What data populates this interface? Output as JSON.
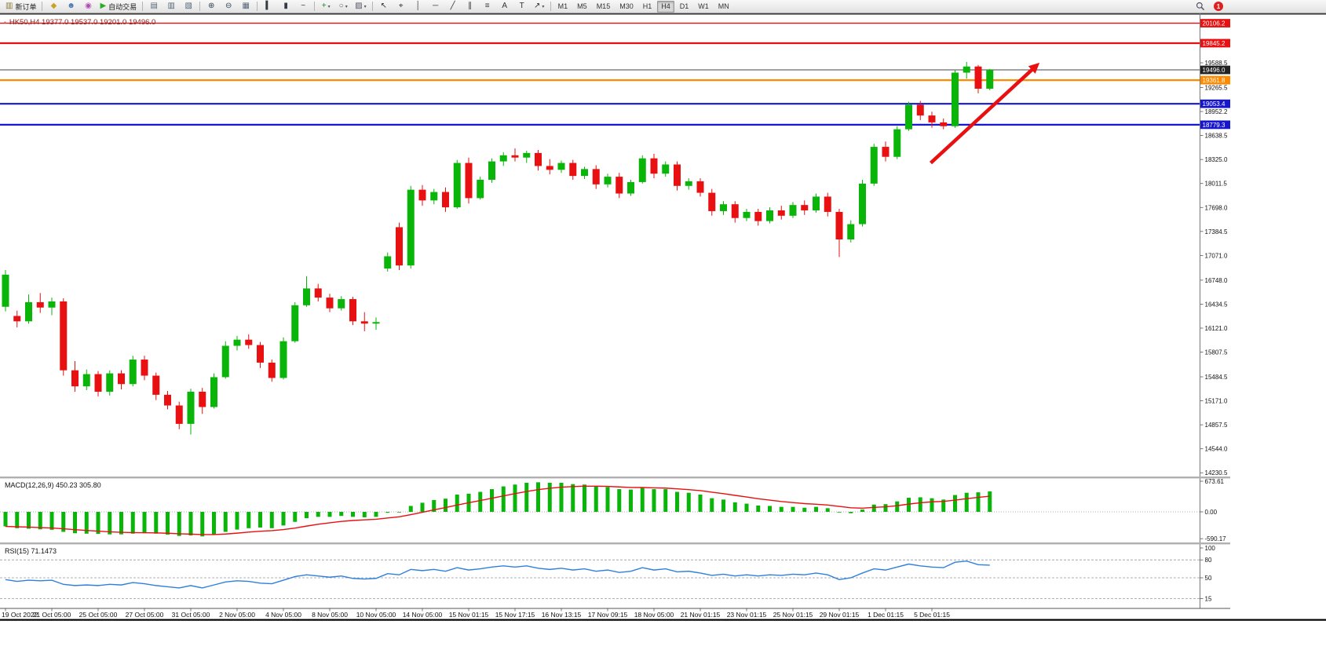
{
  "toolbar": {
    "notifications": {
      "count": "1"
    },
    "timeframes": {
      "items": [
        "M1",
        "M5",
        "M15",
        "M30",
        "H1",
        "H4",
        "D1",
        "W1",
        "MN"
      ],
      "active": "H4"
    },
    "icon_groups": [
      {
        "items": [
          {
            "name": "new-order-button",
            "glyph": "▥",
            "color": "#8a7a3a",
            "label": "新订单"
          }
        ]
      },
      {
        "items": [
          {
            "name": "profiles-icon",
            "glyph": "◆",
            "color": "#c9a227"
          },
          {
            "name": "community-icon",
            "glyph": "☻",
            "color": "#4a77b4"
          },
          {
            "name": "marketplace-icon",
            "glyph": "◉",
            "color": "#b04ab4"
          },
          {
            "name": "autotrading-button",
            "glyph": "▶",
            "color": "#2eaa2e",
            "label": "自动交易"
          }
        ]
      },
      {
        "items": [
          {
            "name": "tile-windows-icon",
            "glyph": "▤",
            "color": "#556677"
          },
          {
            "name": "tile-vertical-icon",
            "glyph": "▥",
            "color": "#556677"
          },
          {
            "name": "cascade-windows-icon",
            "glyph": "▧",
            "color": "#556677"
          }
        ]
      },
      {
        "items": [
          {
            "name": "zoom-in-icon",
            "glyph": "⊕",
            "color": "#334455"
          },
          {
            "name": "zoom-out-icon",
            "glyph": "⊖",
            "color": "#334455"
          },
          {
            "name": "grid-icon",
            "glyph": "▦",
            "color": "#556677"
          }
        ]
      },
      {
        "items": [
          {
            "name": "bar-chart-icon",
            "glyph": "▍",
            "color": "#333a44"
          },
          {
            "name": "candlestick-chart-icon",
            "glyph": "▮",
            "color": "#333a44"
          },
          {
            "name": "line-chart-icon",
            "glyph": "~",
            "color": "#333a44"
          }
        ]
      },
      {
        "items": [
          {
            "name": "indicators-icon",
            "glyph": "+",
            "color": "#1a8a1a",
            "caret": true
          },
          {
            "name": "periods-icon",
            "glyph": "○",
            "color": "#555566",
            "caret": true
          },
          {
            "name": "templates-icon",
            "glyph": "▨",
            "color": "#555566",
            "caret": true
          }
        ]
      },
      {
        "items": [
          {
            "name": "cursor-icon",
            "glyph": "↖",
            "color": "#333333"
          },
          {
            "name": "crosshair-icon",
            "glyph": "⌖",
            "color": "#333333"
          },
          {
            "name": "vertical-line-icon",
            "glyph": "│",
            "color": "#333333"
          },
          {
            "name": "horizontal-line-icon",
            "glyph": "─",
            "color": "#333333"
          },
          {
            "name": "trendline-icon",
            "glyph": "╱",
            "color": "#333333"
          },
          {
            "name": "channel-icon",
            "glyph": "∥",
            "color": "#333333"
          },
          {
            "name": "fibonacci-icon",
            "glyph": "≡",
            "color": "#333333"
          },
          {
            "name": "text-icon",
            "glyph": "A",
            "color": "#333333"
          },
          {
            "name": "text-label-icon",
            "glyph": "T",
            "color": "#333333"
          },
          {
            "name": "arrows-icon",
            "glyph": "↗",
            "color": "#333333",
            "caret": true
          }
        ]
      }
    ]
  },
  "chart_data": [
    {
      "type": "candlestick",
      "symbol": "HK50",
      "period": "H4",
      "header": "HK50,H4 19377.0 19537.0 19201.0 19496.0",
      "ohlc_header": {
        "open": "19377.0",
        "high": "19537.0",
        "low": "19201.0",
        "close": "19496.0"
      },
      "colors": {
        "up": "#09b509",
        "down": "#e81010"
      },
      "current_price": 19496.0,
      "y_axis_labels": [
        "19588.5",
        "19265.5",
        "18952.2",
        "18638.5",
        "18325.0",
        "18011.5",
        "17698.0",
        "17384.5",
        "17071.0",
        "16748.0",
        "16434.5",
        "16121.0",
        "15807.5",
        "15484.5",
        "15171.0",
        "14857.5",
        "14544.0",
        "14230.5"
      ],
      "hlines": [
        {
          "price": 20106.2,
          "label": "20106.2",
          "color": "#e81010",
          "width": 1.4,
          "badge_bg": "#e81010"
        },
        {
          "price": 19845.2,
          "label": "19845.2",
          "color": "#e81010",
          "width": 2.2,
          "badge_bg": "#e81010"
        },
        {
          "price": 19496.0,
          "label": "19496.0",
          "color": "#444444",
          "width": 1.0,
          "badge_bg": "#222222"
        },
        {
          "price": 19361.8,
          "label": "19361.8",
          "color": "#ff8a00",
          "width": 2.2,
          "badge_bg": "#ff8a00"
        },
        {
          "price": 19053.4,
          "label": "19053.4",
          "color": "#1616cf",
          "width": 2.2,
          "badge_bg": "#1616cf"
        },
        {
          "price": 18779.3,
          "label": "18779.3",
          "color": "#1616cf",
          "width": 2.2,
          "badge_bg": "#1616cf"
        }
      ],
      "arrow": {
        "from_index": 79.9,
        "from_price": 18280,
        "to_index": 89.3,
        "to_price": 19590,
        "color": "#e81010"
      },
      "x_label_every": 4,
      "x_labels": [
        "19 Oct 2022",
        "21 Oct 05:00",
        "25 Oct 05:00",
        "27 Oct 05:00",
        "31 Oct 05:00",
        "2 Nov 05:00",
        "4 Nov 05:00",
        "8 Nov 05:00",
        "10 Nov 05:00",
        "14 Nov 05:00",
        "15 Nov 01:15",
        "15 Nov 17:15",
        "16 Nov 13:15",
        "17 Nov 09:15",
        "18 Nov 05:00",
        "21 Nov 01:15",
        "23 Nov 01:15",
        "25 Nov 01:15",
        "29 Nov 01:15",
        "1 Dec 01:15",
        "5 Dec 01:15"
      ],
      "candles": [
        [
          16400,
          16880,
          16340,
          16820
        ],
        [
          16280,
          16350,
          16130,
          16210
        ],
        [
          16210,
          16560,
          16180,
          16460
        ],
        [
          16460,
          16580,
          16320,
          16390
        ],
        [
          16390,
          16520,
          16290,
          16470
        ],
        [
          16470,
          16510,
          15500,
          15570
        ],
        [
          15570,
          15690,
          15290,
          15360
        ],
        [
          15360,
          15580,
          15310,
          15520
        ],
        [
          15520,
          15560,
          15230,
          15290
        ],
        [
          15290,
          15570,
          15240,
          15530
        ],
        [
          15530,
          15570,
          15320,
          15390
        ],
        [
          15390,
          15760,
          15360,
          15710
        ],
        [
          15710,
          15760,
          15440,
          15500
        ],
        [
          15500,
          15540,
          15180,
          15250
        ],
        [
          15250,
          15300,
          15060,
          15110
        ],
        [
          15110,
          15160,
          14800,
          14870
        ],
        [
          14870,
          15330,
          14730,
          15290
        ],
        [
          15290,
          15340,
          15000,
          15090
        ],
        [
          15090,
          15530,
          15070,
          15480
        ],
        [
          15480,
          15950,
          15460,
          15890
        ],
        [
          15890,
          16020,
          15830,
          15970
        ],
        [
          15970,
          16040,
          15850,
          15900
        ],
        [
          15900,
          15940,
          15600,
          15670
        ],
        [
          15670,
          15710,
          15420,
          15470
        ],
        [
          15470,
          16000,
          15450,
          15950
        ],
        [
          15950,
          16460,
          15930,
          16420
        ],
        [
          16420,
          16800,
          16400,
          16640
        ],
        [
          16640,
          16700,
          16470,
          16520
        ],
        [
          16520,
          16570,
          16330,
          16380
        ],
        [
          16380,
          16540,
          16350,
          16500
        ],
        [
          16500,
          16530,
          16160,
          16210
        ],
        [
          16210,
          16330,
          16080,
          16180
        ],
        [
          16180,
          16260,
          16100,
          16200
        ],
        [
          16900,
          17110,
          16860,
          17060
        ],
        [
          17440,
          17500,
          16880,
          16940
        ],
        [
          16940,
          17980,
          16900,
          17930
        ],
        [
          17930,
          17990,
          17720,
          17790
        ],
        [
          17790,
          17940,
          17740,
          17900
        ],
        [
          17900,
          17960,
          17640,
          17700
        ],
        [
          17700,
          18320,
          17680,
          18280
        ],
        [
          18280,
          18350,
          17750,
          17820
        ],
        [
          17820,
          18100,
          17800,
          18060
        ],
        [
          18060,
          18340,
          18020,
          18300
        ],
        [
          18300,
          18420,
          18240,
          18380
        ],
        [
          18380,
          18470,
          18300,
          18350
        ],
        [
          18350,
          18440,
          18280,
          18410
        ],
        [
          18410,
          18450,
          18180,
          18240
        ],
        [
          18240,
          18330,
          18130,
          18190
        ],
        [
          18190,
          18310,
          18150,
          18280
        ],
        [
          18280,
          18320,
          18060,
          18110
        ],
        [
          18110,
          18230,
          18070,
          18200
        ],
        [
          18200,
          18250,
          17940,
          18000
        ],
        [
          18000,
          18140,
          17960,
          18100
        ],
        [
          18100,
          18150,
          17820,
          17880
        ],
        [
          17880,
          18060,
          17850,
          18030
        ],
        [
          18030,
          18380,
          18010,
          18340
        ],
        [
          18340,
          18400,
          18080,
          18140
        ],
        [
          18140,
          18300,
          18100,
          18260
        ],
        [
          18260,
          18300,
          17920,
          17980
        ],
        [
          17980,
          18080,
          17930,
          18040
        ],
        [
          18040,
          18080,
          17840,
          17890
        ],
        [
          17890,
          17940,
          17590,
          17650
        ],
        [
          17650,
          17780,
          17600,
          17740
        ],
        [
          17740,
          17780,
          17500,
          17560
        ],
        [
          17560,
          17680,
          17520,
          17640
        ],
        [
          17640,
          17680,
          17460,
          17520
        ],
        [
          17520,
          17700,
          17490,
          17660
        ],
        [
          17660,
          17720,
          17540,
          17590
        ],
        [
          17590,
          17770,
          17560,
          17730
        ],
        [
          17730,
          17790,
          17600,
          17660
        ],
        [
          17660,
          17880,
          17630,
          17840
        ],
        [
          17840,
          17890,
          17580,
          17640
        ],
        [
          17640,
          17680,
          17050,
          17280
        ],
        [
          17280,
          17530,
          17240,
          17480
        ],
        [
          17480,
          18060,
          17450,
          18010
        ],
        [
          18010,
          18530,
          17980,
          18490
        ],
        [
          18490,
          18560,
          18300,
          18360
        ],
        [
          18360,
          18760,
          18330,
          18720
        ],
        [
          18720,
          19080,
          18700,
          19040
        ],
        [
          19040,
          19090,
          18840,
          18900
        ],
        [
          18900,
          18950,
          18740,
          18810
        ],
        [
          18810,
          18860,
          18720,
          18760
        ],
        [
          18760,
          19500,
          18740,
          19460
        ],
        [
          19460,
          19600,
          19380,
          19540
        ],
        [
          19540,
          19560,
          19190,
          19250
        ],
        [
          19250,
          19510,
          19230,
          19496
        ]
      ]
    },
    {
      "type": "bar",
      "label": "MACD(12,26,9)",
      "values_text": [
        "450.23",
        "305.80"
      ],
      "label_full": "MACD(12,26,9) 450.23 305.80",
      "colors": {
        "histogram": "#09b509",
        "signal": "#e81010"
      },
      "y_axis_labels": [
        "673.61",
        "0.00",
        "-590.17"
      ],
      "ylim": [
        -590.17,
        673.61
      ],
      "histogram": [
        -320,
        -360,
        -370,
        -385,
        -395,
        -440,
        -470,
        -480,
        -485,
        -495,
        -495,
        -480,
        -470,
        -480,
        -500,
        -530,
        -520,
        -540,
        -500,
        -440,
        -390,
        -360,
        -345,
        -360,
        -300,
        -220,
        -140,
        -110,
        -110,
        -90,
        -110,
        -120,
        -110,
        -20,
        -10,
        130,
        200,
        260,
        290,
        380,
        400,
        440,
        500,
        560,
        600,
        640,
        650,
        640,
        640,
        610,
        600,
        560,
        545,
        500,
        490,
        530,
        500,
        500,
        440,
        420,
        380,
        300,
        270,
        210,
        180,
        140,
        130,
        110,
        110,
        90,
        110,
        80,
        0,
        -30,
        50,
        160,
        170,
        230,
        310,
        320,
        300,
        270,
        370,
        420,
        430,
        450.23
      ]
    },
    {
      "type": "line",
      "label": "RSI(15)",
      "value_text": "71.1473",
      "label_full": "RSI(15) 71.1473",
      "colors": {
        "line": "#2f7fdf",
        "levels": "#999999"
      },
      "levels": [
        80,
        50,
        15
      ],
      "y_axis_labels": [
        "100",
        "80",
        "50",
        "15"
      ],
      "ylim": [
        0,
        100
      ],
      "values": [
        47,
        44,
        46,
        45,
        46,
        39,
        37,
        38,
        37,
        39,
        38,
        42,
        40,
        37,
        35,
        33,
        37,
        33,
        38,
        43,
        45,
        44,
        41,
        40,
        46,
        52,
        55,
        53,
        51,
        53,
        49,
        48,
        49,
        57,
        55,
        64,
        62,
        64,
        61,
        67,
        63,
        65,
        68,
        70,
        68,
        70,
        66,
        64,
        66,
        63,
        65,
        61,
        63,
        59,
        61,
        67,
        63,
        65,
        60,
        61,
        58,
        54,
        56,
        53,
        55,
        53,
        55,
        54,
        56,
        55,
        58,
        55,
        47,
        50,
        58,
        65,
        63,
        68,
        73,
        70,
        68,
        67,
        76,
        78,
        72,
        71.1473
      ]
    }
  ]
}
